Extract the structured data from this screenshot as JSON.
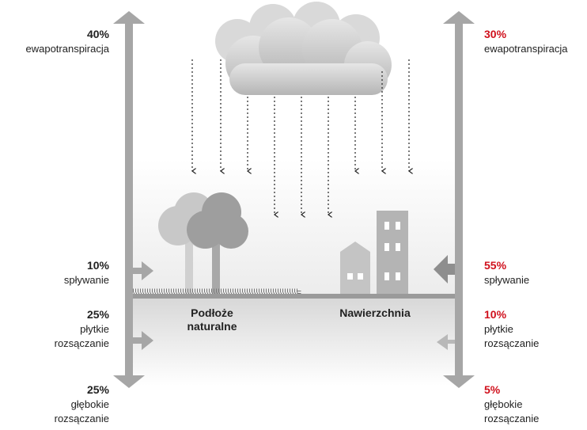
{
  "left": [
    {
      "percent": "40%",
      "lines": [
        "ewapotranspiracja"
      ]
    },
    {
      "percent": "10%",
      "lines": [
        "spływanie"
      ]
    },
    {
      "percent": "25%",
      "lines": [
        "płytkie",
        "rozsączanie"
      ]
    },
    {
      "percent": "25%",
      "lines": [
        "głębokie",
        "rozsączanie"
      ]
    }
  ],
  "right": [
    {
      "percent": "30%",
      "lines": [
        "ewapotranspiracja"
      ]
    },
    {
      "percent": "55%",
      "lines": [
        "spływanie"
      ]
    },
    {
      "percent": "10%",
      "lines": [
        "płytkie",
        "rozsączanie"
      ]
    },
    {
      "percent": "5%",
      "lines": [
        "głębokie",
        "rozsączanie"
      ]
    }
  ],
  "ground": {
    "natural": [
      "Podłoże",
      "naturalne"
    ],
    "paved": [
      "Nawierzchnia"
    ]
  }
}
